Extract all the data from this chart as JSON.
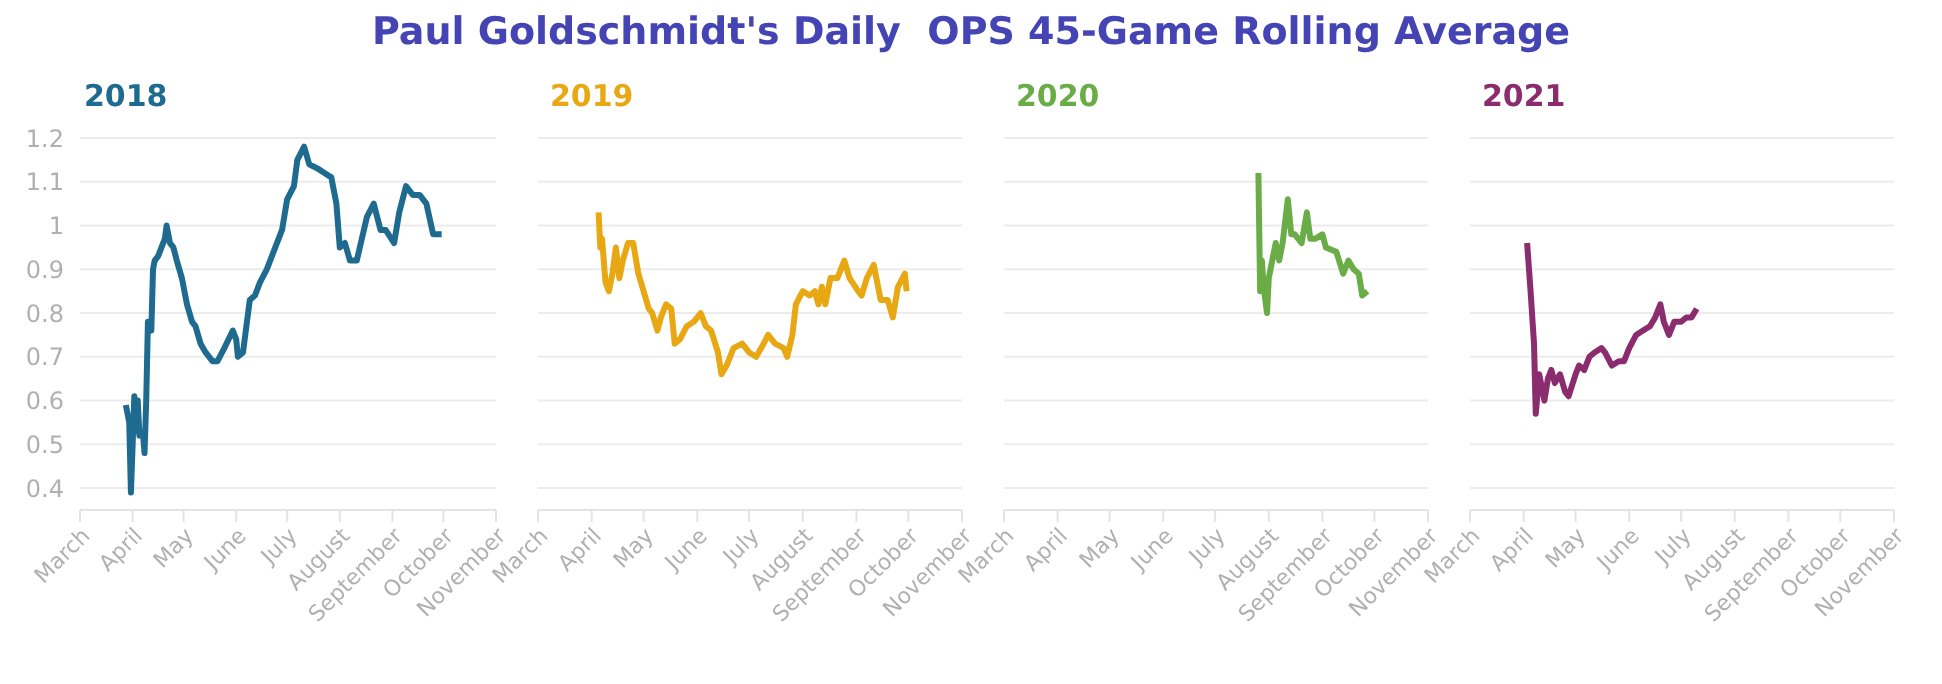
{
  "chart_data": [
    {
      "type": "line",
      "title": "Paul Goldschmidt's Daily  OPS 45-Game Rolling Average",
      "legend": "top left",
      "grid": "y",
      "marker": "none",
      "line_style": "solid",
      "xlim": [
        "2018-03-01",
        "2018-11-01"
      ],
      "xticks": [
        {
          "value": "2018-03-01",
          "label": "March"
        },
        {
          "value": "2018-04-01",
          "label": "April"
        },
        {
          "value": "2018-05-01",
          "label": "May"
        },
        {
          "value": "2018-06-01",
          "label": "June"
        },
        {
          "value": "2018-07-01",
          "label": "July"
        },
        {
          "value": "2018-08-01",
          "label": "August"
        },
        {
          "value": "2018-09-01",
          "label": "September"
        },
        {
          "value": "2018-10-01",
          "label": "October"
        },
        {
          "value": "2018-11-01",
          "label": "November"
        }
      ],
      "ylim": [
        0.35,
        1.2
      ],
      "yticks": [
        0.4,
        0.5,
        0.6,
        0.7,
        0.8,
        0.9,
        1,
        1.1,
        1.2
      ],
      "x": [
        "2018-03-28",
        "2018-03-30",
        "2018-03-31",
        "2018-04-01",
        "2018-04-02",
        "2018-04-03",
        "2018-04-04",
        "2018-04-05",
        "2018-04-07",
        "2018-04-08",
        "2018-04-09",
        "2018-04-10",
        "2018-04-12",
        "2018-04-13",
        "2018-04-14",
        "2018-04-16",
        "2018-04-18",
        "2018-04-20",
        "2018-04-21",
        "2018-04-23",
        "2018-04-25",
        "2018-04-27",
        "2018-04-30",
        "2018-05-03",
        "2018-05-06",
        "2018-05-08",
        "2018-05-11",
        "2018-05-14",
        "2018-05-18",
        "2018-05-21",
        "2018-05-25",
        "2018-05-30",
        "2018-06-01",
        "2018-06-02",
        "2018-06-05",
        "2018-06-09",
        "2018-06-12",
        "2018-06-15",
        "2018-06-19",
        "2018-06-24",
        "2018-06-28",
        "2018-07-01",
        "2018-07-05",
        "2018-07-07",
        "2018-07-11",
        "2018-07-14",
        "2018-07-19",
        "2018-07-23",
        "2018-07-27",
        "2018-07-30",
        "2018-08-01",
        "2018-08-04",
        "2018-08-07",
        "2018-08-11",
        "2018-08-14",
        "2018-08-17",
        "2018-08-21",
        "2018-08-25",
        "2018-08-28",
        "2018-09-02",
        "2018-09-05",
        "2018-09-09",
        "2018-09-13",
        "2018-09-17",
        "2018-09-21",
        "2018-09-25",
        "2018-09-30"
      ],
      "series": [
        {
          "name": "2018",
          "color": "#1f6a8f",
          "values": [
            0.59,
            0.55,
            0.39,
            0.5,
            0.61,
            0.53,
            0.6,
            0.52,
            0.53,
            0.48,
            0.6,
            0.78,
            0.76,
            0.9,
            0.92,
            0.93,
            0.95,
            0.97,
            1.0,
            0.96,
            0.95,
            0.92,
            0.88,
            0.82,
            0.78,
            0.77,
            0.73,
            0.71,
            0.69,
            0.69,
            0.72,
            0.76,
            0.74,
            0.7,
            0.71,
            0.83,
            0.84,
            0.87,
            0.9,
            0.95,
            0.99,
            1.06,
            1.09,
            1.15,
            1.18,
            1.14,
            1.13,
            1.12,
            1.11,
            1.05,
            0.95,
            0.96,
            0.92,
            0.92,
            0.97,
            1.02,
            1.05,
            0.99,
            0.99,
            0.96,
            1.03,
            1.09,
            1.07,
            1.07,
            1.05,
            0.98,
            0.98
          ]
        }
      ]
    },
    {
      "type": "line",
      "legend": "top left",
      "grid": "y",
      "marker": "none",
      "line_style": "solid",
      "tick_labels": "x",
      "xlim": [
        "2019-03-01",
        "2019-11-01"
      ],
      "xticks": [
        {
          "value": "2019-03-01",
          "label": "March"
        },
        {
          "value": "2019-04-01",
          "label": "April"
        },
        {
          "value": "2019-05-01",
          "label": "May"
        },
        {
          "value": "2019-06-01",
          "label": "June"
        },
        {
          "value": "2019-07-01",
          "label": "July"
        },
        {
          "value": "2019-08-01",
          "label": "August"
        },
        {
          "value": "2019-09-01",
          "label": "September"
        },
        {
          "value": "2019-10-01",
          "label": "October"
        },
        {
          "value": "2019-11-01",
          "label": "November"
        }
      ],
      "ylim": [
        0.35,
        1.2
      ],
      "yticks": [
        0.4,
        0.5,
        0.6,
        0.7,
        0.8,
        0.9,
        1,
        1.1,
        1.2
      ],
      "x": [
        "2019-04-05",
        "2019-04-06",
        "2019-04-07",
        "2019-04-09",
        "2019-04-11",
        "2019-04-13",
        "2019-04-15",
        "2019-04-17",
        "2019-04-19",
        "2019-04-22",
        "2019-04-25",
        "2019-04-28",
        "2019-05-01",
        "2019-05-04",
        "2019-05-06",
        "2019-05-09",
        "2019-05-11",
        "2019-05-14",
        "2019-05-17",
        "2019-05-19",
        "2019-05-22",
        "2019-05-26",
        "2019-05-30",
        "2019-06-03",
        "2019-06-06",
        "2019-06-09",
        "2019-06-13",
        "2019-06-15",
        "2019-06-18",
        "2019-06-22",
        "2019-06-27",
        "2019-07-01",
        "2019-07-05",
        "2019-07-08",
        "2019-07-12",
        "2019-07-16",
        "2019-07-21",
        "2019-07-23",
        "2019-07-26",
        "2019-07-28",
        "2019-08-01",
        "2019-08-05",
        "2019-08-08",
        "2019-08-10",
        "2019-08-12",
        "2019-08-14",
        "2019-08-17",
        "2019-08-21",
        "2019-08-25",
        "2019-08-28",
        "2019-09-02",
        "2019-09-04",
        "2019-09-07",
        "2019-09-11",
        "2019-09-15",
        "2019-09-19",
        "2019-09-22",
        "2019-09-25",
        "2019-09-29",
        "2019-09-30"
      ],
      "series": [
        {
          "name": "2019",
          "color": "#e8a814",
          "values": [
            1.03,
            0.95,
            0.97,
            0.87,
            0.85,
            0.89,
            0.95,
            0.88,
            0.92,
            0.96,
            0.96,
            0.89,
            0.85,
            0.81,
            0.8,
            0.76,
            0.79,
            0.82,
            0.81,
            0.73,
            0.74,
            0.77,
            0.78,
            0.8,
            0.77,
            0.76,
            0.71,
            0.66,
            0.68,
            0.72,
            0.73,
            0.71,
            0.7,
            0.72,
            0.75,
            0.73,
            0.72,
            0.7,
            0.75,
            0.82,
            0.85,
            0.84,
            0.85,
            0.82,
            0.86,
            0.82,
            0.88,
            0.88,
            0.92,
            0.88,
            0.85,
            0.84,
            0.88,
            0.91,
            0.83,
            0.83,
            0.79,
            0.86,
            0.89,
            0.85
          ]
        }
      ]
    },
    {
      "type": "line",
      "legend": "top left",
      "grid": "y",
      "marker": "none",
      "line_style": "solid",
      "tick_labels": "x",
      "xlim": [
        "2020-03-01",
        "2020-11-01"
      ],
      "xticks": [
        {
          "value": "2020-03-01",
          "label": "March"
        },
        {
          "value": "2020-04-01",
          "label": "April"
        },
        {
          "value": "2020-05-01",
          "label": "May"
        },
        {
          "value": "2020-06-01",
          "label": "June"
        },
        {
          "value": "2020-07-01",
          "label": "July"
        },
        {
          "value": "2020-08-01",
          "label": "August"
        },
        {
          "value": "2020-09-01",
          "label": "September"
        },
        {
          "value": "2020-10-01",
          "label": "October"
        },
        {
          "value": "2020-11-01",
          "label": "November"
        }
      ],
      "ylim": [
        0.35,
        1.2
      ],
      "yticks": [
        0.4,
        0.5,
        0.6,
        0.7,
        0.8,
        0.9,
        1,
        1.1,
        1.2
      ],
      "x": [
        "2020-07-26",
        "2020-07-27",
        "2020-07-28",
        "2020-07-29",
        "2020-07-31",
        "2020-08-01",
        "2020-08-02",
        "2020-08-05",
        "2020-08-07",
        "2020-08-09",
        "2020-08-12",
        "2020-08-14",
        "2020-08-16",
        "2020-08-20",
        "2020-08-23",
        "2020-08-25",
        "2020-08-28",
        "2020-09-01",
        "2020-09-03",
        "2020-09-09",
        "2020-09-13",
        "2020-09-16",
        "2020-09-19",
        "2020-09-22",
        "2020-09-24",
        "2020-09-27"
      ],
      "series": [
        {
          "name": "2020",
          "color": "#6aac46",
          "values": [
            1.12,
            0.85,
            0.92,
            0.86,
            0.8,
            0.88,
            0.9,
            0.96,
            0.92,
            0.96,
            1.06,
            0.98,
            0.98,
            0.96,
            1.03,
            0.97,
            0.97,
            0.98,
            0.95,
            0.94,
            0.89,
            0.92,
            0.9,
            0.89,
            0.84,
            0.85
          ]
        }
      ]
    },
    {
      "type": "line",
      "legend": "top left",
      "grid": "y",
      "marker": "none",
      "line_style": "solid",
      "tick_labels": "x",
      "xlim": [
        "2021-03-01",
        "2021-11-01"
      ],
      "xticks": [
        {
          "value": "2021-03-01",
          "label": "March"
        },
        {
          "value": "2021-04-01",
          "label": "April"
        },
        {
          "value": "2021-05-01",
          "label": "May"
        },
        {
          "value": "2021-06-01",
          "label": "June"
        },
        {
          "value": "2021-07-01",
          "label": "July"
        },
        {
          "value": "2021-08-01",
          "label": "August"
        },
        {
          "value": "2021-09-01",
          "label": "September"
        },
        {
          "value": "2021-10-01",
          "label": "October"
        },
        {
          "value": "2021-11-01",
          "label": "November"
        }
      ],
      "ylim": [
        0.35,
        1.2
      ],
      "yticks": [
        0.4,
        0.5,
        0.6,
        0.7,
        0.8,
        0.9,
        1,
        1.1,
        1.2
      ],
      "x": [
        "2021-04-03",
        "2021-04-05",
        "2021-04-07",
        "2021-04-08",
        "2021-04-10",
        "2021-04-11",
        "2021-04-13",
        "2021-04-15",
        "2021-04-17",
        "2021-04-19",
        "2021-04-22",
        "2021-04-25",
        "2021-04-27",
        "2021-05-01",
        "2021-05-03",
        "2021-05-06",
        "2021-05-09",
        "2021-05-12",
        "2021-05-16",
        "2021-05-18",
        "2021-05-22",
        "2021-05-26",
        "2021-05-29",
        "2021-06-01",
        "2021-06-05",
        "2021-06-09",
        "2021-06-13",
        "2021-06-16",
        "2021-06-19",
        "2021-06-21",
        "2021-06-24",
        "2021-06-27",
        "2021-07-01",
        "2021-07-04",
        "2021-07-07",
        "2021-07-10"
      ],
      "series": [
        {
          "name": "2021",
          "color": "#8b2c6e",
          "values": [
            0.96,
            0.85,
            0.73,
            0.57,
            0.66,
            0.64,
            0.6,
            0.65,
            0.67,
            0.64,
            0.66,
            0.62,
            0.61,
            0.66,
            0.68,
            0.67,
            0.7,
            0.71,
            0.72,
            0.71,
            0.68,
            0.69,
            0.69,
            0.72,
            0.75,
            0.76,
            0.77,
            0.79,
            0.82,
            0.78,
            0.75,
            0.78,
            0.78,
            0.79,
            0.79,
            0.81
          ]
        }
      ]
    }
  ]
}
